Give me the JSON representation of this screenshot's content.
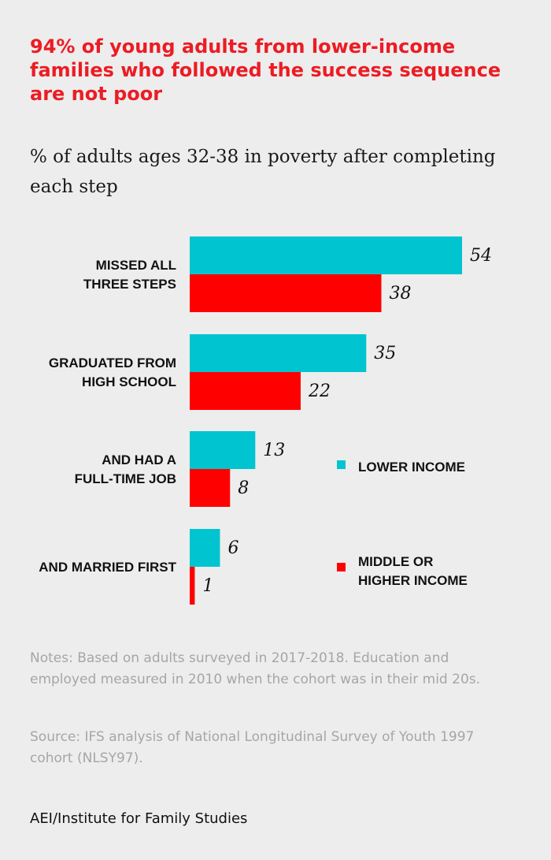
{
  "title": "94% of young adults from lower-income families who followed the success sequence are not poor",
  "subtitle": "% of adults ages 32-38 in poverty after completing each step",
  "colors": {
    "lower": "#00c4d0",
    "higher": "#ff0000",
    "title": "#ec1c24",
    "background": "#ededed"
  },
  "chart_data": {
    "type": "bar",
    "orientation": "horizontal",
    "categories": [
      [
        "MISSED ALL",
        "THREE STEPS"
      ],
      [
        "GRADUATED FROM",
        "HIGH SCHOOL"
      ],
      [
        "AND HAD A",
        "FULL-TIME JOB"
      ],
      [
        "AND MARRIED FIRST"
      ]
    ],
    "series": [
      {
        "name": "LOWER INCOME",
        "values": [
          54,
          35,
          13,
          6
        ]
      },
      {
        "name": "MIDDLE OR HIGHER INCOME",
        "values": [
          38,
          22,
          8,
          1
        ]
      }
    ],
    "xlim": [
      0,
      54
    ],
    "grid": false,
    "legend_position": "right"
  },
  "legend": {
    "lower_label": "LOWER INCOME",
    "higher_label_line1": "MIDDLE OR",
    "higher_label_line2": "HIGHER INCOME"
  },
  "notes": "Notes: Based on adults surveyed in 2017-2018. Education and employed measured in 2010 when the cohort was in their mid 20s.",
  "source": "Source: IFS analysis of National Longitudinal Survey of Youth 1997 cohort (NLSY97).",
  "credit": "AEI/Institute for Family Studies"
}
